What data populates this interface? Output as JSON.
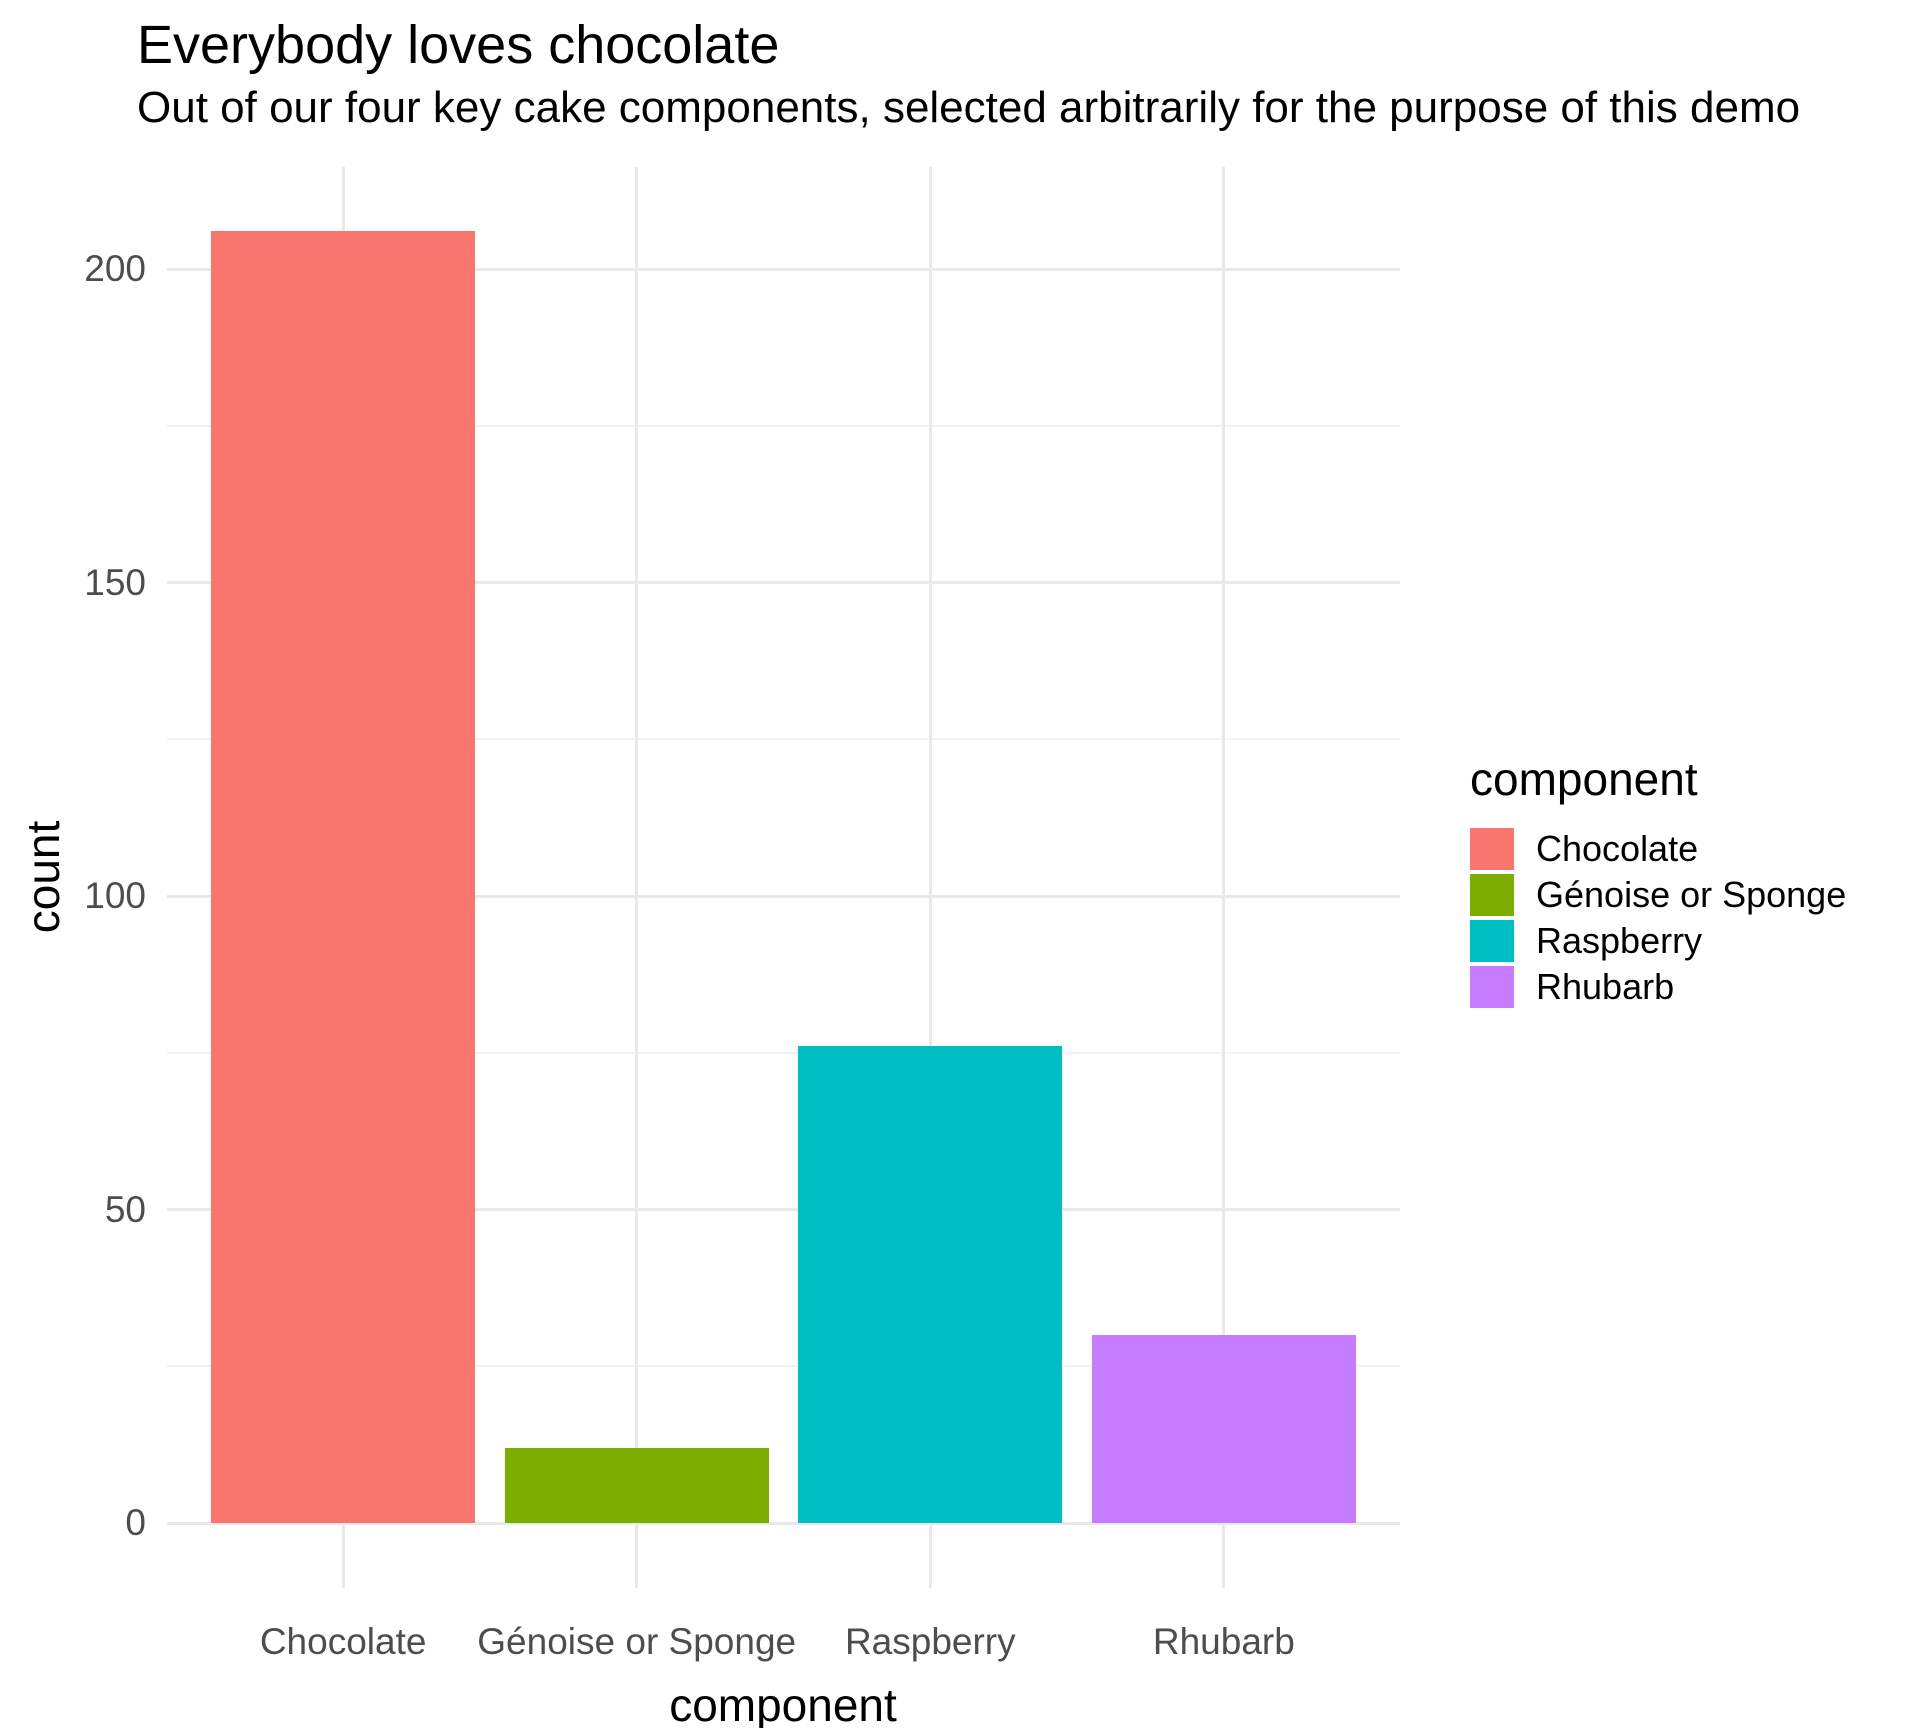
{
  "title": "Everybody loves chocolate",
  "subtitle": "Out of our four key cake components, selected arbitrarily for the purpose of this demo",
  "chart_data": {
    "type": "bar",
    "categories": [
      "Chocolate",
      "Génoise or Sponge",
      "Raspberry",
      "Rhubarb"
    ],
    "values": [
      206,
      12,
      76,
      30
    ],
    "bar_colors": [
      "#F8766D",
      "#7CAE00",
      "#00BFC4",
      "#C77CFF"
    ],
    "title": "Everybody loves chocolate",
    "subtitle": "Out of our four key cake components, selected arbitrarily for the purpose of this demo",
    "xlabel": "component",
    "ylabel": "count",
    "ylim": [
      -10,
      216
    ],
    "y_major_ticks": [
      0,
      50,
      100,
      150,
      200
    ],
    "y_minor_ticks": [
      25,
      75,
      125,
      175
    ],
    "grid": "major and minor horizontal, vertical at category centers",
    "legend": {
      "title": "component",
      "position": "right",
      "entries": [
        {
          "label": "Chocolate",
          "color": "#F8766D"
        },
        {
          "label": "Génoise or Sponge",
          "color": "#7CAE00"
        },
        {
          "label": "Raspberry",
          "color": "#00BFC4"
        },
        {
          "label": "Rhubarb",
          "color": "#C77CFF"
        }
      ]
    }
  },
  "colors": {
    "background": "#FFFFFF",
    "grid_major": "#E9E9E9",
    "grid_minor": "#F2F2F2",
    "axis_text": "#4D4D4D",
    "text": "#000000"
  }
}
